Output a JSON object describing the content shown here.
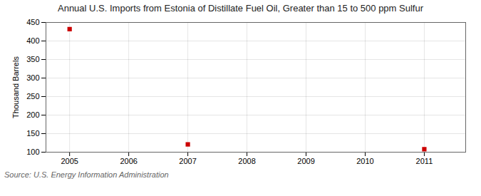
{
  "chart_data": {
    "type": "scatter",
    "title": "Annual U.S. Imports from Estonia of Distillate Fuel Oil, Greater than 15 to 500 ppm Sulfur",
    "ylabel": "Thousand Barrels",
    "source": "Source: U.S. Energy Information Administration",
    "x": [
      2005,
      2007,
      2011
    ],
    "values": [
      432,
      121,
      108
    ],
    "color": "#cc0000",
    "marker": "square",
    "xlim": [
      2004.6,
      2011.7
    ],
    "xticks": [
      2005,
      2006,
      2007,
      2008,
      2009,
      2010,
      2011
    ],
    "ylim": [
      100,
      450
    ],
    "yticks": [
      100,
      150,
      200,
      250,
      300,
      350,
      400,
      450
    ],
    "grid": true
  }
}
